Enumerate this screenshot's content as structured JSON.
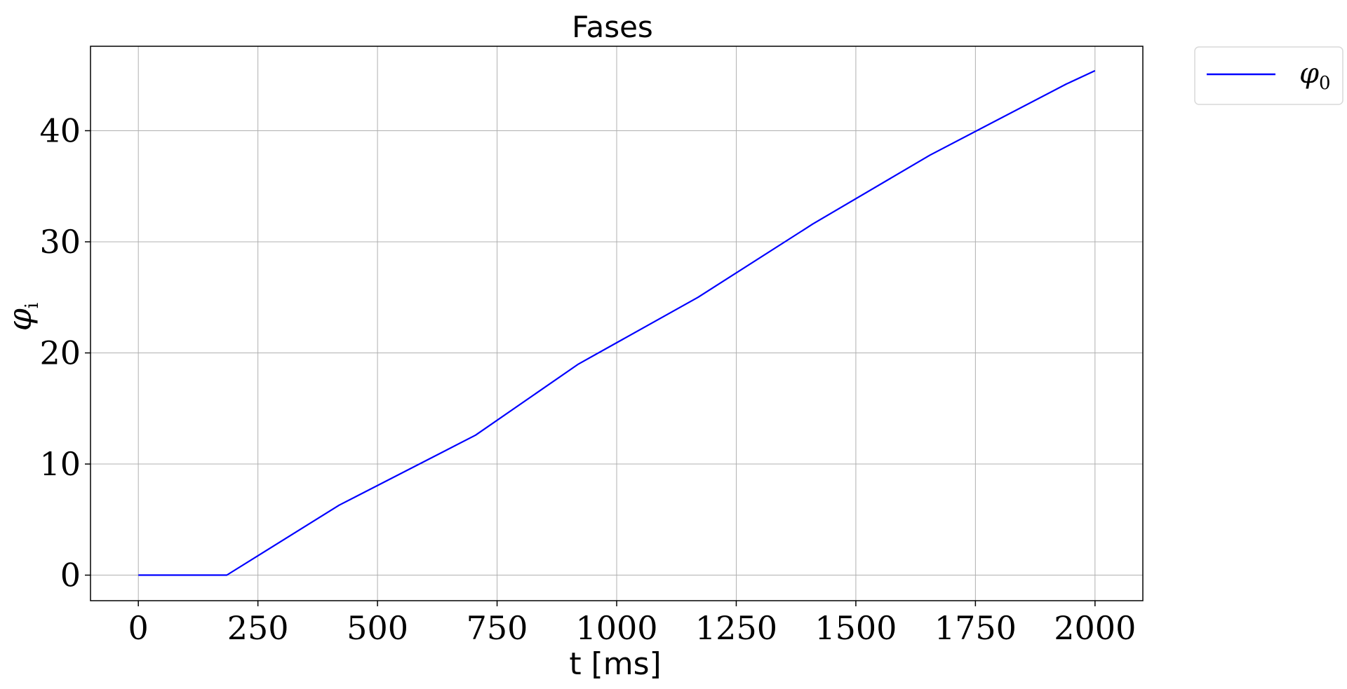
{
  "chart_data": {
    "type": "line",
    "title": "Fases",
    "xlabel": "t [ms]",
    "ylabel_symbol": "φ",
    "ylabel_subscript": "i",
    "xlim": [
      -100,
      2100
    ],
    "ylim": [
      -2.3,
      47.6
    ],
    "xticks": [
      0,
      250,
      500,
      750,
      1000,
      1250,
      1500,
      1750,
      2000
    ],
    "xtick_labels": [
      "0",
      "250",
      "500",
      "750",
      "1000",
      "1250",
      "1500",
      "1750",
      "2000"
    ],
    "yticks": [
      0,
      10,
      20,
      30,
      40
    ],
    "ytick_labels": [
      "0",
      "10",
      "20",
      "30",
      "40"
    ],
    "grid": true,
    "legend_placement": "outside-top-right",
    "series": [
      {
        "name_symbol": "φ",
        "name_subscript": "0",
        "color": "#0000ff",
        "x": [
          0,
          185,
          420,
          705,
          920,
          1170,
          1410,
          1655,
          1940,
          2000
        ],
        "y": [
          0,
          0,
          6.3,
          12.6,
          19.0,
          25.0,
          31.6,
          37.8,
          44.2,
          45.4
        ]
      }
    ]
  }
}
